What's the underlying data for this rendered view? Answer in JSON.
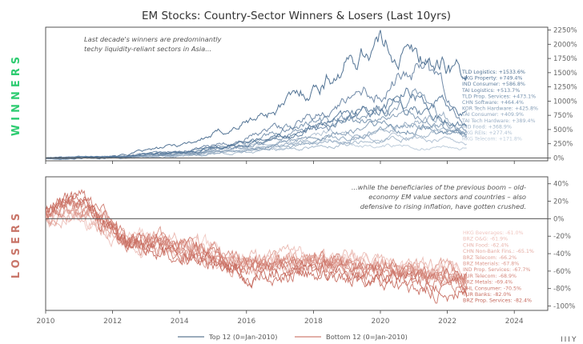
{
  "chart_data": {
    "type": "line",
    "title": "EM Stocks: Country-Sector Winners & Losers (Last 10yrs)",
    "x_range": [
      "2010",
      "2025"
    ],
    "x_ticks": [
      "2010",
      "2012",
      "2014",
      "2016",
      "2018",
      "2020",
      "2022",
      "2024"
    ],
    "legend": {
      "placement": "bottom-center",
      "entries": [
        {
          "name": "Top 12 (0=Jan-2010)",
          "color": "#5f7a94"
        },
        {
          "name": "Bottom 12 (0=Jan-2010)",
          "color": "#d07f74"
        }
      ]
    },
    "panels": {
      "winners": {
        "side_label": "WINNERS",
        "annotation": [
          "Last decade's winners are predominantly",
          "techy liquidity-reliant sectors in Asia..."
        ],
        "yticks": [
          "2250%",
          "2000%",
          "1750%",
          "1500%",
          "1250%",
          "1000%",
          "750%",
          "500%",
          "250%",
          "0%"
        ],
        "ylim": [
          -50,
          2300
        ],
        "series": [
          {
            "name": "TLD Logistics",
            "end_label": "TLD Logistics: +1533.6%",
            "final": 1533.6,
            "peak": 2050,
            "peak_at": 2019.85,
            "color": "#4a6d8f"
          },
          {
            "name": "HKG Property",
            "end_label": "HKG Property: +749.4%",
            "final": 749.4,
            "peak": 1150,
            "peak_at": 2021.0,
            "color": "#55779a"
          },
          {
            "name": "IND Consumer",
            "end_label": "IND Consumer: +586.8%",
            "final": 586.8,
            "peak": 1000,
            "peak_at": 2020.6,
            "color": "#5f7f9f"
          },
          {
            "name": "TAI Logistics",
            "end_label": "TAI Logistics: +513.7%",
            "final": 513.7,
            "peak": 1700,
            "peak_at": 2021.4,
            "color": "#6884a3"
          },
          {
            "name": "TLD Prop. Services",
            "end_label": "TLD Prop. Services: +473.1%",
            "final": 473.1,
            "peak": 680,
            "peak_at": 2018.3,
            "color": "#7390ad"
          },
          {
            "name": "CHN Software",
            "end_label": "CHN Software: +464.4%",
            "final": 464.4,
            "peak": 1050,
            "peak_at": 2021.1,
            "color": "#7b96b1"
          },
          {
            "name": "KOR Tech Hardware",
            "end_label": "KOR Tech Hardware: +425.8%",
            "final": 425.8,
            "peak": 750,
            "peak_at": 2021.0,
            "color": "#839cb5"
          },
          {
            "name": "TAI Consumer",
            "end_label": "TAI Consumer: +409.9%",
            "final": 409.9,
            "peak": 620,
            "peak_at": 2021.3,
            "color": "#8ea6be"
          },
          {
            "name": "TAI Tech Hardware",
            "end_label": "TAI Tech Hardware: +389.4%",
            "final": 389.4,
            "peak": 700,
            "peak_at": 2021.9,
            "color": "#99aec4"
          },
          {
            "name": "IND Food",
            "end_label": "IND Food: +368.9%",
            "final": 368.9,
            "peak": 480,
            "peak_at": 2021.7,
            "color": "#a3b7ca"
          },
          {
            "name": "HKG REIs",
            "end_label": "HKG REIs: +277.4%",
            "final": 277.4,
            "peak": 450,
            "peak_at": 2018.5,
            "color": "#afc0d2"
          },
          {
            "name": "HKG Telecom",
            "end_label": "HKG Telecom: +171.8%",
            "final": 171.8,
            "peak": 300,
            "peak_at": 2017.9,
            "color": "#bccbda"
          }
        ]
      },
      "losers": {
        "side_label": "LOSERS",
        "annotation": [
          "...while the beneficiaries of the previous boom – old-",
          "economy EM value sectors and countries – also",
          "defensive to rising inflation, have gotten crushed."
        ],
        "yticks": [
          "40%",
          "20%",
          "0%",
          "-20%",
          "-40%",
          "-60%",
          "-80%",
          "-100%"
        ],
        "ylim": [
          -105,
          48
        ],
        "series": [
          {
            "name": "HKG Beverages",
            "end_label": "HKG Beverages: -61.0%",
            "final": -61.0,
            "color": "#f0c6c0"
          },
          {
            "name": "BRZ O&G",
            "end_label": "BRZ O&G: -61.9%",
            "final": -61.9,
            "color": "#ecbdb6"
          },
          {
            "name": "CHN Food",
            "end_label": "CHN Food: -62.4%",
            "final": -62.4,
            "color": "#e8b3ab"
          },
          {
            "name": "CHN Non-Bank Fins.",
            "end_label": "CHN Non-Bank Fins.: -65.1%",
            "final": -65.1,
            "color": "#e4aaa1"
          },
          {
            "name": "BRZ Telecom",
            "end_label": "BRZ Telecom: -66.2%",
            "final": -66.2,
            "color": "#e0a197"
          },
          {
            "name": "BRZ Materials",
            "end_label": "BRZ Materials: -67.8%",
            "final": -67.8,
            "color": "#dc988d"
          },
          {
            "name": "IND Prop. Services",
            "end_label": "IND Prop. Services: -67.7%",
            "final": -67.7,
            "color": "#d88f84"
          },
          {
            "name": "TUR Telecom",
            "end_label": "TUR Telecom: -68.9%",
            "final": -68.9,
            "color": "#d4867b"
          },
          {
            "name": "BRZ Metals",
            "end_label": "BRZ Metals: -69.4%",
            "final": -69.4,
            "color": "#d07e72"
          },
          {
            "name": "CHL Consumer",
            "end_label": "CHL Consumer: -70.5%",
            "final": -70.5,
            "color": "#cc766a"
          },
          {
            "name": "TUR Banks",
            "end_label": "TUR Banks: -82.0%",
            "final": -82.0,
            "color": "#c86e62"
          },
          {
            "name": "BRZ Prop. Services",
            "end_label": "BRZ Prop. Services: -82.4%",
            "final": -82.4,
            "color": "#c4665a"
          }
        ]
      }
    }
  },
  "logo": "IIIY"
}
